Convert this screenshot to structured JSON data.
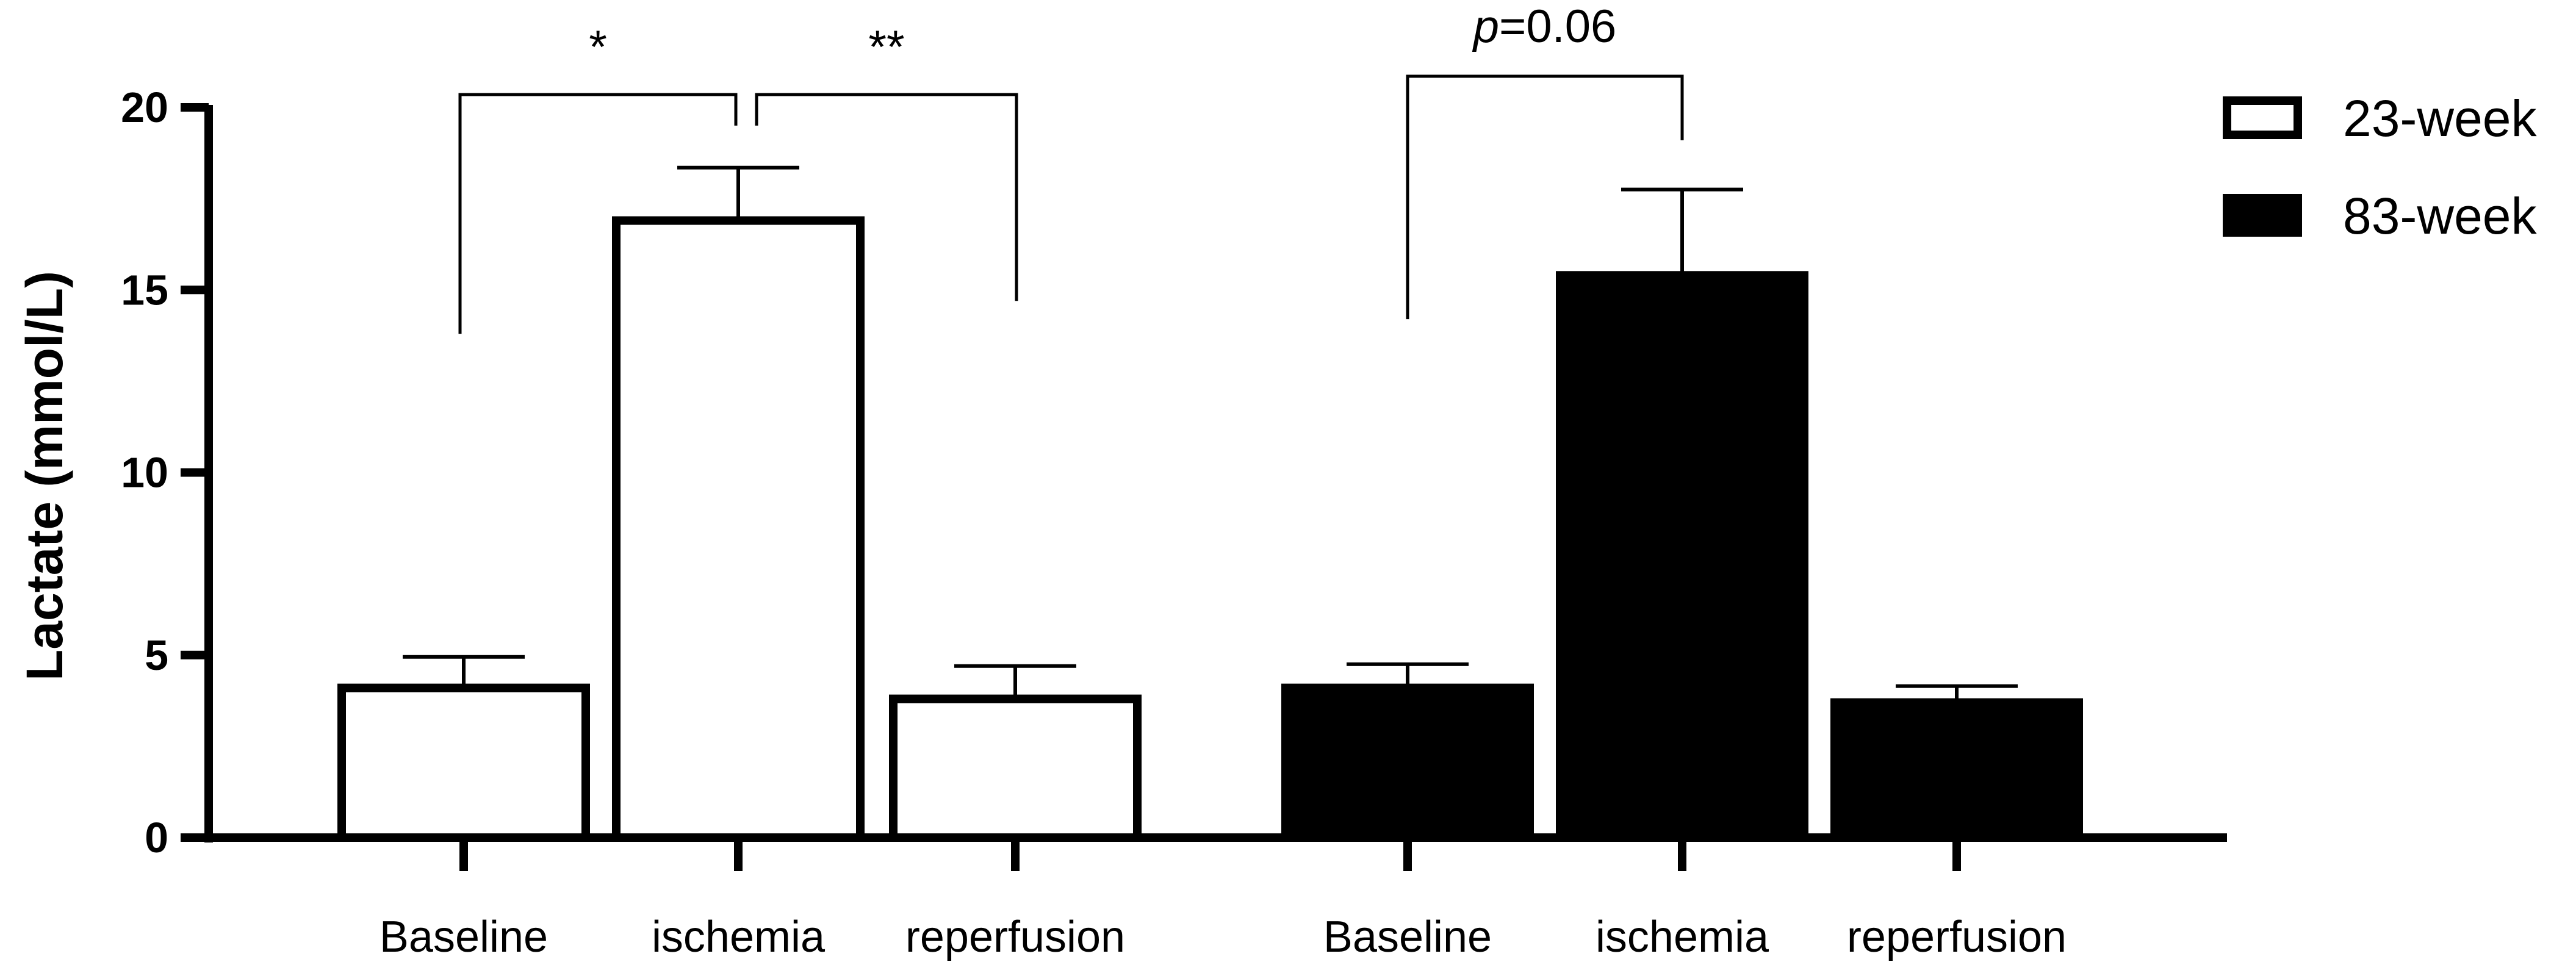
{
  "chart_data": {
    "type": "bar",
    "title": "",
    "xlabel": "",
    "ylabel": "Lactate (mmol/L)",
    "ylim": [
      0,
      20
    ],
    "yticks": [
      "0",
      "5",
      "10",
      "15",
      "20"
    ],
    "series": [
      {
        "name": "23-week",
        "fill": "#ffffff",
        "stroke": "#000000",
        "categories": [
          "Baseline",
          "ischemia",
          "reperfusion"
        ],
        "values": [
          4.1,
          16.9,
          3.8
        ],
        "errors": [
          0.85,
          1.45,
          0.9
        ]
      },
      {
        "name": "83-week",
        "fill": "#000000",
        "stroke": "#000000",
        "categories": [
          "Baseline",
          "ischemia",
          "reperfusion"
        ],
        "values": [
          4.1,
          15.4,
          3.7
        ],
        "errors": [
          0.65,
          2.35,
          0.45
        ]
      }
    ],
    "significance": [
      {
        "series": 0,
        "from": 0,
        "to": 1,
        "label": "*",
        "italic_prefix": ""
      },
      {
        "series": 0,
        "from": 1,
        "to": 2,
        "label": "**",
        "italic_prefix": ""
      },
      {
        "series": 1,
        "from": 0,
        "to": 1,
        "label": "=0.06",
        "italic_prefix": "p"
      }
    ],
    "legend": {
      "position": "top-right",
      "entries": [
        "23-week",
        "83-week"
      ]
    }
  }
}
